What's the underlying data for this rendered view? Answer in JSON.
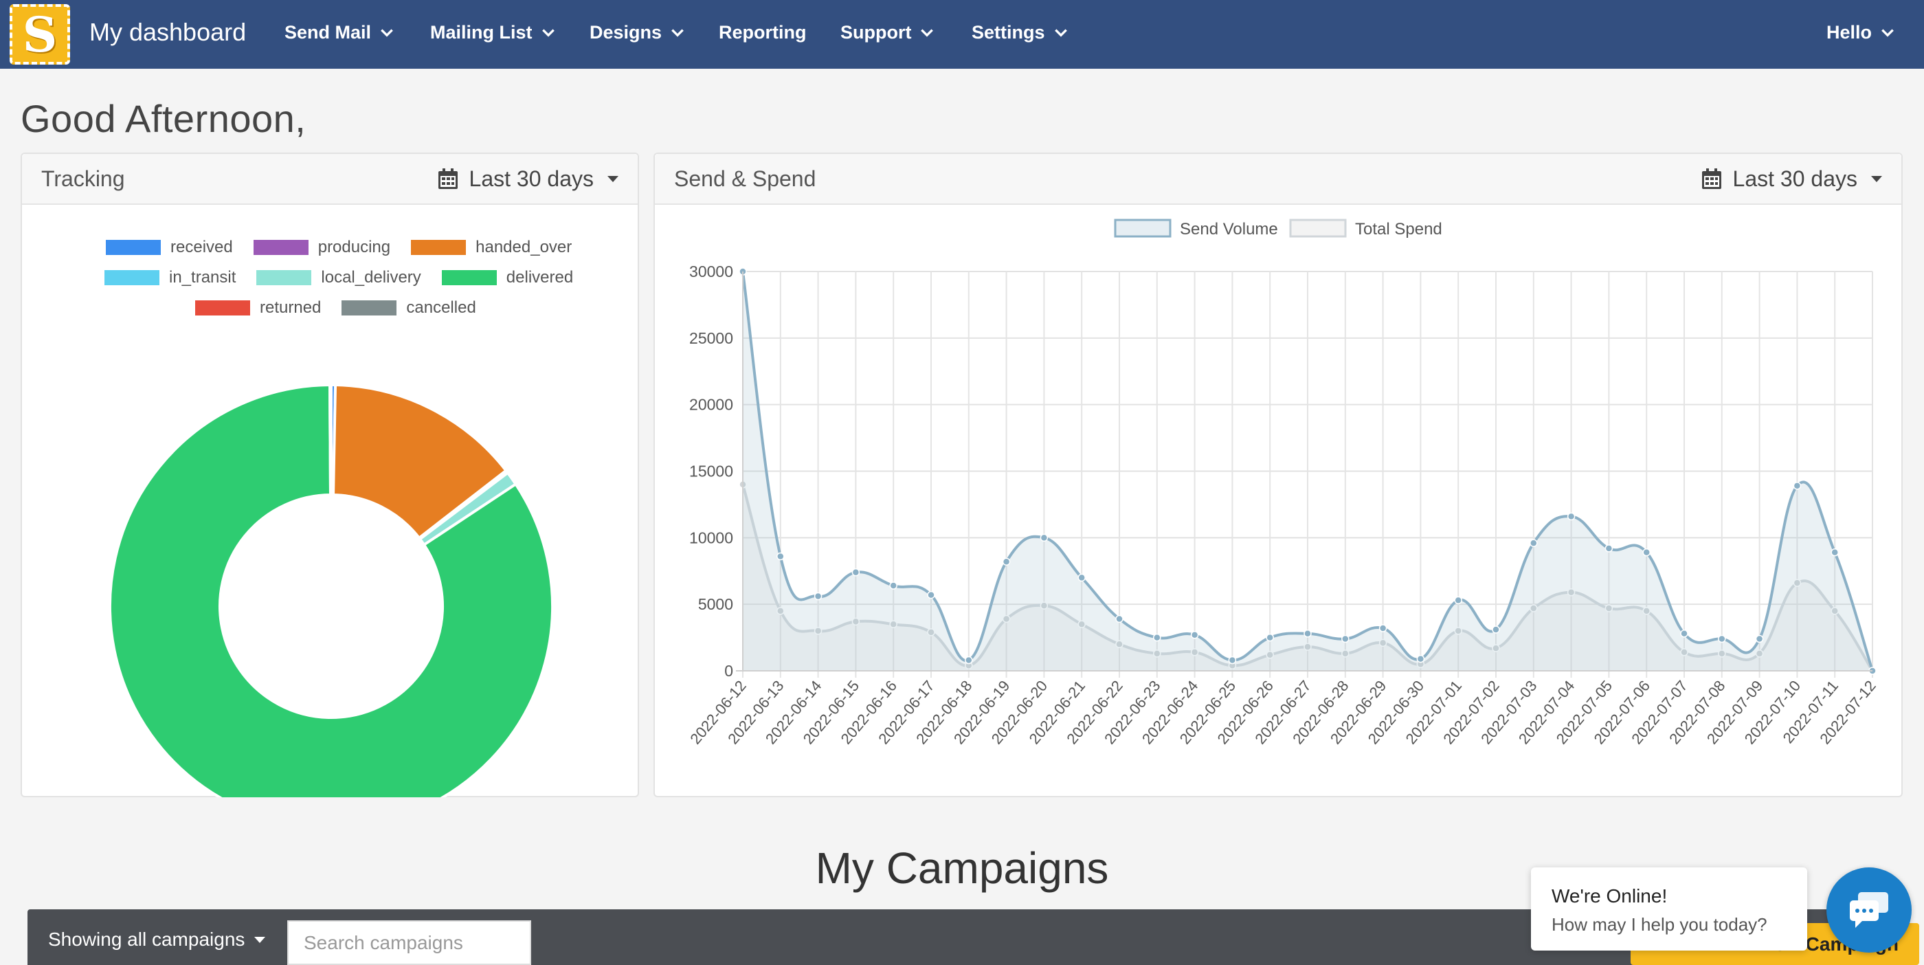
{
  "nav": {
    "brand": "My dashboard",
    "items": [
      {
        "label": "Send Mail",
        "dropdown": true
      },
      {
        "label": "Mailing List",
        "dropdown": true
      },
      {
        "label": "Designs",
        "dropdown": true
      },
      {
        "label": "Reporting",
        "dropdown": false
      },
      {
        "label": "Support",
        "dropdown": true
      },
      {
        "label": "Settings",
        "dropdown": true
      }
    ],
    "user": "Hello",
    "logo_letter": "S"
  },
  "greeting": "Good Afternoon,",
  "tracking": {
    "title": "Tracking",
    "range": "Last 30 days",
    "legend": [
      {
        "label": "received",
        "color": "#3b8ef0"
      },
      {
        "label": "producing",
        "color": "#9b59b6"
      },
      {
        "label": "handed_over",
        "color": "#e67e22"
      },
      {
        "label": "in_transit",
        "color": "#5dd0f0"
      },
      {
        "label": "local_delivery",
        "color": "#8fe3d6"
      },
      {
        "label": "delivered",
        "color": "#2ecc71"
      },
      {
        "label": "returned",
        "color": "#e74c3c"
      },
      {
        "label": "cancelled",
        "color": "#7f8c8d"
      }
    ]
  },
  "chart_data": [
    {
      "type": "pie",
      "variant": "doughnut",
      "labels": [
        "received",
        "producing",
        "handed_over",
        "in_transit",
        "local_delivery",
        "delivered",
        "returned",
        "cancelled"
      ],
      "values": [
        0.3,
        0,
        14.2,
        0.2,
        1.0,
        84.2,
        0,
        0.1
      ],
      "legend": "top"
    },
    {
      "type": "line",
      "x": [
        "2022-06-12",
        "2022-06-13",
        "2022-06-14",
        "2022-06-15",
        "2022-06-16",
        "2022-06-17",
        "2022-06-18",
        "2022-06-19",
        "2022-06-20",
        "2022-06-21",
        "2022-06-22",
        "2022-06-23",
        "2022-06-24",
        "2022-06-25",
        "2022-06-26",
        "2022-06-27",
        "2022-06-28",
        "2022-06-29",
        "2022-06-30",
        "2022-07-01",
        "2022-07-02",
        "2022-07-03",
        "2022-07-04",
        "2022-07-05",
        "2022-07-06",
        "2022-07-07",
        "2022-07-08",
        "2022-07-09",
        "2022-07-10",
        "2022-07-11",
        "2022-07-12"
      ],
      "series": [
        {
          "name": "Send Volume",
          "values": [
            30000,
            8600,
            5600,
            7400,
            6400,
            5700,
            800,
            8200,
            10000,
            7000,
            3900,
            2500,
            2700,
            800,
            2500,
            2800,
            2400,
            3200,
            900,
            5300,
            3100,
            9600,
            11600,
            9200,
            8900,
            2800,
            2400,
            2400,
            13900,
            8900,
            0
          ]
        },
        {
          "name": "Total Spend",
          "values": [
            14000,
            4500,
            3000,
            3700,
            3500,
            2900,
            400,
            3900,
            4900,
            3500,
            2000,
            1300,
            1400,
            400,
            1200,
            1800,
            1300,
            2100,
            500,
            3000,
            1700,
            4700,
            5900,
            4700,
            4500,
            1400,
            1300,
            1300,
            6600,
            4500,
            0
          ]
        }
      ],
      "ylim": [
        0,
        30000
      ],
      "yticks": [
        0,
        5000,
        10000,
        15000,
        20000,
        25000,
        30000
      ],
      "grid": true,
      "legend": "top"
    }
  ],
  "send_spend": {
    "title": "Send & Spend",
    "range": "Last 30 days",
    "legend": [
      {
        "label": "Send Volume",
        "color": "#8bb0c6"
      },
      {
        "label": "Total Spend",
        "color": "#d0d6da"
      }
    ]
  },
  "campaigns": {
    "title": "My Campaigns",
    "filter": "Showing all campaigns",
    "search_placeholder": "Search campaigns",
    "new_button": "New Campaign"
  },
  "chat": {
    "line1": "We're Online!",
    "line2": "How may I help you today?"
  }
}
